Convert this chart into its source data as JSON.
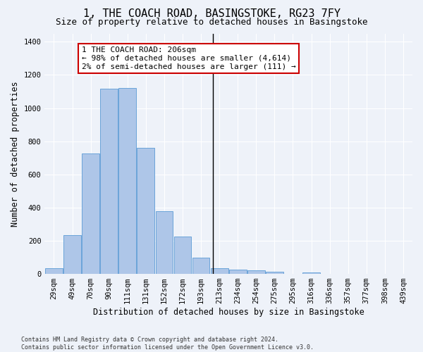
{
  "title": "1, THE COACH ROAD, BASINGSTOKE, RG23 7FY",
  "subtitle": "Size of property relative to detached houses in Basingstoke",
  "xlabel": "Distribution of detached houses by size in Basingstoke",
  "ylabel": "Number of detached properties",
  "categories": [
    "29sqm",
    "49sqm",
    "70sqm",
    "90sqm",
    "111sqm",
    "131sqm",
    "152sqm",
    "172sqm",
    "193sqm",
    "213sqm",
    "234sqm",
    "254sqm",
    "275sqm",
    "295sqm",
    "316sqm",
    "336sqm",
    "357sqm",
    "377sqm",
    "398sqm",
    "439sqm"
  ],
  "values": [
    35,
    235,
    725,
    1115,
    1120,
    760,
    380,
    225,
    100,
    35,
    25,
    22,
    15,
    0,
    10,
    0,
    0,
    0,
    0,
    0
  ],
  "bar_color": "#aec6e8",
  "bar_edgecolor": "#5b9bd5",
  "vline_x": 8.65,
  "vline_color": "#000000",
  "annotation_text": "1 THE COACH ROAD: 206sqm\n← 98% of detached houses are smaller (4,614)\n2% of semi-detached houses are larger (111) →",
  "annotation_box_color": "#ffffff",
  "annotation_box_edgecolor": "#cc0000",
  "ylim": [
    0,
    1450
  ],
  "yticks": [
    0,
    200,
    400,
    600,
    800,
    1000,
    1200,
    1400
  ],
  "background_color": "#eef2f9",
  "grid_color": "#ffffff",
  "footer_line1": "Contains HM Land Registry data © Crown copyright and database right 2024.",
  "footer_line2": "Contains public sector information licensed under the Open Government Licence v3.0.",
  "title_fontsize": 11,
  "subtitle_fontsize": 9,
  "label_fontsize": 8.5,
  "tick_fontsize": 7.5,
  "annotation_fontsize": 8,
  "footer_fontsize": 6
}
